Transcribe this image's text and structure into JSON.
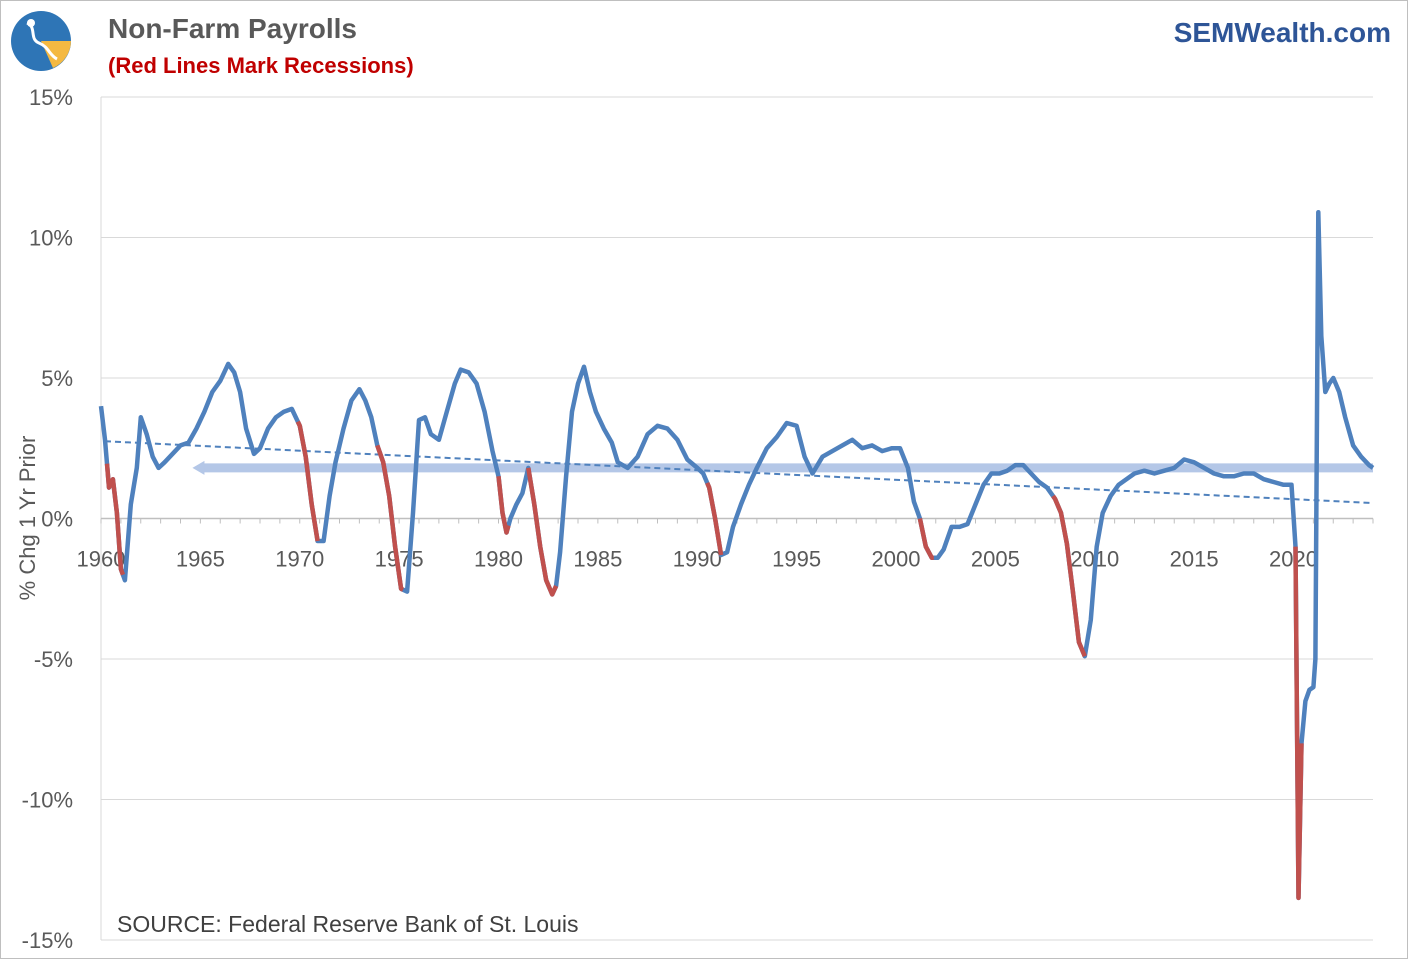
{
  "header": {
    "title": "Non-Farm Payrolls",
    "subtitle": "(Red Lines Mark Recessions)",
    "brand": "SEMWealth.com"
  },
  "source": "SOURCE: Federal Reserve Bank of St. Louis",
  "colors": {
    "series": "#4f81bd",
    "recession": "#c0504d",
    "reference": "#b4c7e7",
    "trend": "#4f81bd",
    "grid": "#d9d9d9",
    "logo_circle": "#2e75b6",
    "logo_accent": "#f4b942"
  },
  "icons": {
    "logo": "semwealth-logo-icon"
  },
  "chart_data": {
    "type": "line",
    "title": "Non-Farm Payrolls",
    "subtitle": "(Red Lines Mark Recessions)",
    "ylabel": "% Chg 1 Yr Prior",
    "xlabel": "",
    "xlim": [
      1960,
      2024
    ],
    "ylim": [
      -15,
      15
    ],
    "x_ticks": [
      1960,
      1965,
      1970,
      1975,
      1980,
      1985,
      1990,
      1995,
      2000,
      2005,
      2010,
      2015,
      2020
    ],
    "x_tick_labels": [
      "1960",
      "1965",
      "1970",
      "1975",
      "1980",
      "1985",
      "1990",
      "1995",
      "2000",
      "2005",
      "2010",
      "2015",
      "2020"
    ],
    "y_ticks": [
      15,
      10,
      5,
      0,
      -5,
      -10,
      -15
    ],
    "y_tick_labels": [
      "15%",
      "10%",
      "5%",
      "0%",
      "-5%",
      "-10%",
      "-15%"
    ],
    "grid": true,
    "legend": "none",
    "series": [
      {
        "values_x": [
          1960.0,
          1960.2,
          1960.4,
          1960.6,
          1960.8,
          1961.0,
          1961.2,
          1961.5,
          1961.8,
          1962.0,
          1962.3,
          1962.6,
          1962.9,
          1963.2,
          1963.6,
          1964.0,
          1964.4,
          1964.8,
          1965.2,
          1965.6,
          1966.0,
          1966.4,
          1966.7,
          1967.0,
          1967.3,
          1967.7,
          1968.0,
          1968.4,
          1968.8,
          1969.2,
          1969.6,
          1970.0,
          1970.3,
          1970.6,
          1970.9,
          1971.2,
          1971.5,
          1971.8,
          1972.2,
          1972.6,
          1973.0,
          1973.3,
          1973.6,
          1973.9,
          1974.2,
          1974.5,
          1974.8,
          1975.1,
          1975.4,
          1975.7,
          1976.0,
          1976.3,
          1976.6,
          1977.0,
          1977.4,
          1977.8,
          1978.1,
          1978.5,
          1978.9,
          1979.3,
          1979.7,
          1980.0,
          1980.2,
          1980.4,
          1980.6,
          1980.9,
          1981.2,
          1981.5,
          1981.8,
          1982.1,
          1982.4,
          1982.7,
          1982.9,
          1983.1,
          1983.4,
          1983.7,
          1984.0,
          1984.3,
          1984.6,
          1984.9,
          1985.3,
          1985.7,
          1986.0,
          1986.5,
          1987.0,
          1987.5,
          1988.0,
          1988.5,
          1989.0,
          1989.5,
          1990.0,
          1990.3,
          1990.6,
          1990.9,
          1991.2,
          1991.5,
          1991.8,
          1992.2,
          1992.6,
          1993.0,
          1993.5,
          1994.0,
          1994.5,
          1995.0,
          1995.4,
          1995.8,
          1996.3,
          1996.8,
          1997.3,
          1997.8,
          1998.3,
          1998.8,
          1999.3,
          1999.8,
          2000.2,
          2000.6,
          2000.9,
          2001.2,
          2001.5,
          2001.8,
          2002.1,
          2002.4,
          2002.8,
          2003.2,
          2003.6,
          2004.0,
          2004.4,
          2004.8,
          2005.2,
          2005.6,
          2006.0,
          2006.4,
          2006.8,
          2007.2,
          2007.6,
          2008.0,
          2008.3,
          2008.6,
          2008.9,
          2009.2,
          2009.5,
          2009.8,
          2010.1,
          2010.4,
          2010.8,
          2011.2,
          2011.6,
          2012.0,
          2012.5,
          2013.0,
          2013.5,
          2014.0,
          2014.5,
          2015.0,
          2015.5,
          2016.0,
          2016.5,
          2017.0,
          2017.5,
          2018.0,
          2018.5,
          2019.0,
          2019.5,
          2019.9,
          2020.1,
          2020.25,
          2020.4,
          2020.6,
          2020.8,
          2021.0,
          2021.1,
          2021.25,
          2021.4,
          2021.6,
          2021.8,
          2022.0,
          2022.3,
          2022.6,
          2023.0,
          2023.4,
          2023.8,
          2024.0
        ],
        "values_y": [
          4.0,
          2.8,
          1.1,
          1.4,
          0.2,
          -1.8,
          -2.2,
          0.5,
          1.8,
          3.6,
          3.0,
          2.2,
          1.8,
          2.0,
          2.3,
          2.6,
          2.7,
          3.2,
          3.8,
          4.5,
          4.9,
          5.5,
          5.2,
          4.5,
          3.2,
          2.3,
          2.5,
          3.2,
          3.6,
          3.8,
          3.9,
          3.3,
          2.2,
          0.5,
          -0.8,
          -0.8,
          0.8,
          2.0,
          3.2,
          4.2,
          4.6,
          4.2,
          3.6,
          2.6,
          2.0,
          0.8,
          -1.0,
          -2.5,
          -2.6,
          0.2,
          3.5,
          3.6,
          3.0,
          2.8,
          3.8,
          4.8,
          5.3,
          5.2,
          4.8,
          3.8,
          2.4,
          1.5,
          0.2,
          -0.5,
          0.0,
          0.5,
          0.9,
          1.8,
          0.5,
          -1.0,
          -2.2,
          -2.7,
          -2.4,
          -1.2,
          1.5,
          3.8,
          4.8,
          5.4,
          4.5,
          3.8,
          3.2,
          2.7,
          2.0,
          1.8,
          2.2,
          3.0,
          3.3,
          3.2,
          2.8,
          2.1,
          1.8,
          1.6,
          1.1,
          0.0,
          -1.3,
          -1.2,
          -0.3,
          0.5,
          1.2,
          1.8,
          2.5,
          2.9,
          3.4,
          3.3,
          2.2,
          1.6,
          2.2,
          2.4,
          2.6,
          2.8,
          2.5,
          2.6,
          2.4,
          2.5,
          2.5,
          1.8,
          0.6,
          0.0,
          -1.0,
          -1.4,
          -1.4,
          -1.1,
          -0.3,
          -0.3,
          -0.2,
          0.5,
          1.2,
          1.6,
          1.6,
          1.7,
          1.9,
          1.9,
          1.6,
          1.3,
          1.1,
          0.7,
          0.2,
          -0.9,
          -2.6,
          -4.4,
          -4.9,
          -3.6,
          -1.0,
          0.2,
          0.8,
          1.2,
          1.4,
          1.6,
          1.7,
          1.6,
          1.7,
          1.8,
          2.1,
          2.0,
          1.8,
          1.6,
          1.5,
          1.5,
          1.6,
          1.6,
          1.4,
          1.3,
          1.2,
          1.2,
          -1.0,
          -13.5,
          -8.0,
          -6.5,
          -6.1,
          -6.0,
          -5.0,
          10.9,
          6.5,
          4.5,
          4.8,
          5.0,
          4.5,
          3.6,
          2.6,
          2.2,
          1.9,
          1.8
        ],
        "recessions": [
          [
            1960.3,
            1961.1
          ],
          [
            1969.9,
            1970.9
          ],
          [
            1973.9,
            1975.2
          ],
          [
            1980.0,
            1980.5
          ],
          [
            1981.5,
            1982.9
          ],
          [
            1990.5,
            1991.2
          ],
          [
            2001.2,
            2001.9
          ],
          [
            2007.9,
            2009.5
          ],
          [
            2020.1,
            2020.4
          ]
        ]
      }
    ],
    "reference_line": {
      "y": 1.8,
      "x_start": 1964.6,
      "x_end": 2024.0,
      "arrow": "left"
    },
    "trend_line": {
      "x": [
        1960.2,
        2024.0
      ],
      "y": [
        2.75,
        0.55
      ],
      "style": "dashed"
    }
  }
}
